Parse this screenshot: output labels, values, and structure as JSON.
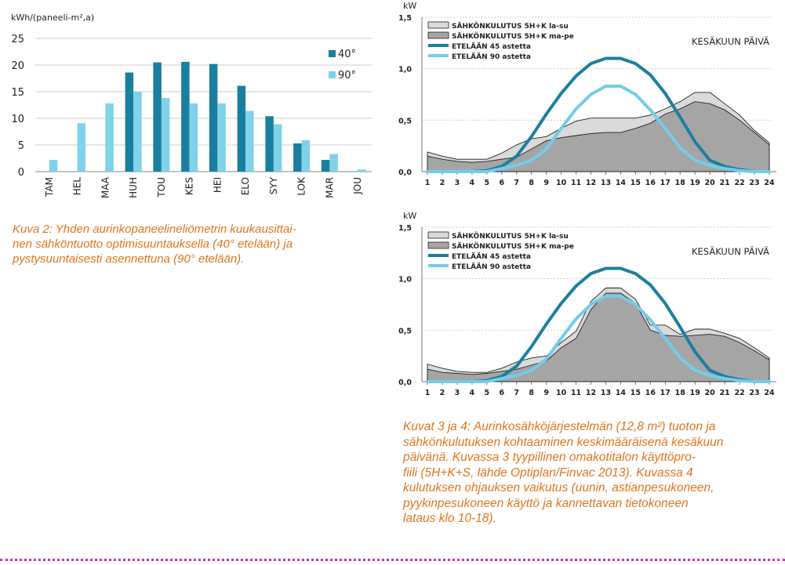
{
  "chart_data": [
    {
      "type": "bar",
      "ylabel": "kWh/(paneeli-m²,a)",
      "ylim": [
        0,
        25
      ],
      "yticks": [
        0,
        5,
        10,
        15,
        20,
        25
      ],
      "categories": [
        "TAM",
        "HEL",
        "MAA",
        "HUH",
        "TOU",
        "KES",
        "HEI",
        "ELO",
        "SYY",
        "LOK",
        "MAR",
        "JOU"
      ],
      "series": [
        {
          "name": "40°",
          "color": "#1a7f9f",
          "values": [
            0,
            0,
            0,
            18.6,
            20.5,
            20.6,
            20.2,
            16.1,
            10.4,
            5.3,
            2.2,
            0
          ]
        },
        {
          "name": "90°",
          "color": "#7fd2ea",
          "values": [
            2.2,
            9.1,
            12.8,
            15.0,
            13.8,
            12.8,
            12.8,
            11.4,
            8.9,
            5.9,
            3.3,
            0.4
          ]
        }
      ],
      "legend": "right",
      "grid": true
    },
    {
      "type": "area",
      "ylabel": "kW",
      "ylim": [
        0,
        1.5
      ],
      "yticks": [
        "0,0",
        "0,5",
        "1,0",
        "1,5"
      ],
      "x": [
        1,
        2,
        3,
        4,
        5,
        6,
        7,
        8,
        9,
        10,
        11,
        12,
        13,
        14,
        15,
        16,
        17,
        18,
        19,
        20,
        21,
        22,
        23,
        24
      ],
      "annotation": "KESÄKUUN PÄIVÄ",
      "series": [
        {
          "name": "SÄHKÖNKULUTUS 5H+K la-su",
          "kind": "area",
          "fill": "#dadada",
          "values": [
            0.19,
            0.15,
            0.12,
            0.12,
            0.12,
            0.18,
            0.26,
            0.32,
            0.34,
            0.42,
            0.49,
            0.52,
            0.52,
            0.52,
            0.52,
            0.55,
            0.61,
            0.68,
            0.77,
            0.77,
            0.66,
            0.55,
            0.4,
            0.28
          ]
        },
        {
          "name": "SÄHKÖNKULUTUS 5H+K ma-pe",
          "kind": "area",
          "fill": "#a5a5a5",
          "values": [
            0.15,
            0.12,
            0.1,
            0.09,
            0.1,
            0.12,
            0.14,
            0.22,
            0.3,
            0.33,
            0.35,
            0.37,
            0.38,
            0.38,
            0.42,
            0.47,
            0.56,
            0.61,
            0.68,
            0.66,
            0.6,
            0.5,
            0.38,
            0.26
          ]
        },
        {
          "name": "ETELÄÄN 45 astetta",
          "kind": "line",
          "color": "#1b7fa0",
          "values": [
            0,
            0,
            0,
            0,
            0.01,
            0.05,
            0.15,
            0.34,
            0.56,
            0.76,
            0.93,
            1.05,
            1.1,
            1.1,
            1.05,
            0.94,
            0.76,
            0.53,
            0.29,
            0.11,
            0.05,
            0.02,
            0,
            0
          ]
        },
        {
          "name": "ETELÄÄN 90 astetta",
          "kind": "line",
          "color": "#74ccea",
          "values": [
            0,
            0,
            0,
            0,
            0,
            0.03,
            0.06,
            0.11,
            0.22,
            0.42,
            0.61,
            0.75,
            0.83,
            0.83,
            0.75,
            0.6,
            0.42,
            0.23,
            0.11,
            0.06,
            0.03,
            0.01,
            0,
            0
          ]
        }
      ]
    },
    {
      "type": "area",
      "ylabel": "kW",
      "ylim": [
        0,
        1.5
      ],
      "yticks": [
        "0,0",
        "0,5",
        "1,0",
        "1,5"
      ],
      "x": [
        1,
        2,
        3,
        4,
        5,
        6,
        7,
        8,
        9,
        10,
        11,
        12,
        13,
        14,
        15,
        16,
        17,
        18,
        19,
        20,
        21,
        22,
        23,
        24
      ],
      "annotation": "KESÄKUUN PÄIVÄ",
      "series": [
        {
          "name": "SÄHKÖNKULUTUS 5H+K la-su",
          "kind": "area",
          "fill": "#dadada",
          "values": [
            0.17,
            0.13,
            0.1,
            0.09,
            0.09,
            0.13,
            0.19,
            0.23,
            0.25,
            0.38,
            0.49,
            0.78,
            0.91,
            0.91,
            0.8,
            0.55,
            0.55,
            0.46,
            0.51,
            0.51,
            0.47,
            0.42,
            0.33,
            0.23
          ]
        },
        {
          "name": "SÄHKÖNKULUTUS 5H+K ma-pe",
          "kind": "area",
          "fill": "#a5a5a5",
          "values": [
            0.12,
            0.09,
            0.08,
            0.07,
            0.08,
            0.1,
            0.12,
            0.16,
            0.2,
            0.33,
            0.42,
            0.7,
            0.86,
            0.86,
            0.76,
            0.5,
            0.45,
            0.44,
            0.45,
            0.46,
            0.44,
            0.38,
            0.3,
            0.21
          ]
        },
        {
          "name": "ETELÄÄN 45 astetta",
          "kind": "line",
          "color": "#1b7fa0",
          "values": [
            0,
            0,
            0,
            0,
            0.01,
            0.05,
            0.15,
            0.34,
            0.56,
            0.76,
            0.93,
            1.05,
            1.1,
            1.1,
            1.05,
            0.94,
            0.76,
            0.53,
            0.29,
            0.11,
            0.05,
            0.02,
            0,
            0
          ]
        },
        {
          "name": "ETELÄÄN 90 astetta",
          "kind": "line",
          "color": "#74ccea",
          "values": [
            0,
            0,
            0,
            0,
            0,
            0.03,
            0.06,
            0.11,
            0.22,
            0.42,
            0.61,
            0.75,
            0.83,
            0.83,
            0.75,
            0.6,
            0.42,
            0.23,
            0.11,
            0.06,
            0.03,
            0.01,
            0,
            0
          ]
        }
      ]
    }
  ],
  "captions": {
    "figure2": [
      "Kuva 2: Yhden aurinkopaneelineliömetrin kuukausittai-",
      "nen sähköntuotto optimisuuntauksella (40° etelään)  ja",
      "pystysuuntaisesti asennettuna (90° etelään)."
    ],
    "figure34": [
      "Kuvat 3 ja 4: Aurinkosähköjärjestelmän (12,8 m²) tuoton ja",
      "sähkönkulutuksen kohtaaminen keskimääräisenä kesäkuun",
      "päivänä. Kuvassa 3 tyypillinen omakotitalon käyttöpro-",
      "fiili (5H+K+S, lähde Optiplan/Finvac 2013). Kuvassa 4",
      "kulutuksen ohjauksen vaikutus (uunin, astianpesukoneen,",
      "pyykinpesukoneen käyttö ja kannettavan tietokoneen",
      "lataus klo 10-18)."
    ]
  }
}
